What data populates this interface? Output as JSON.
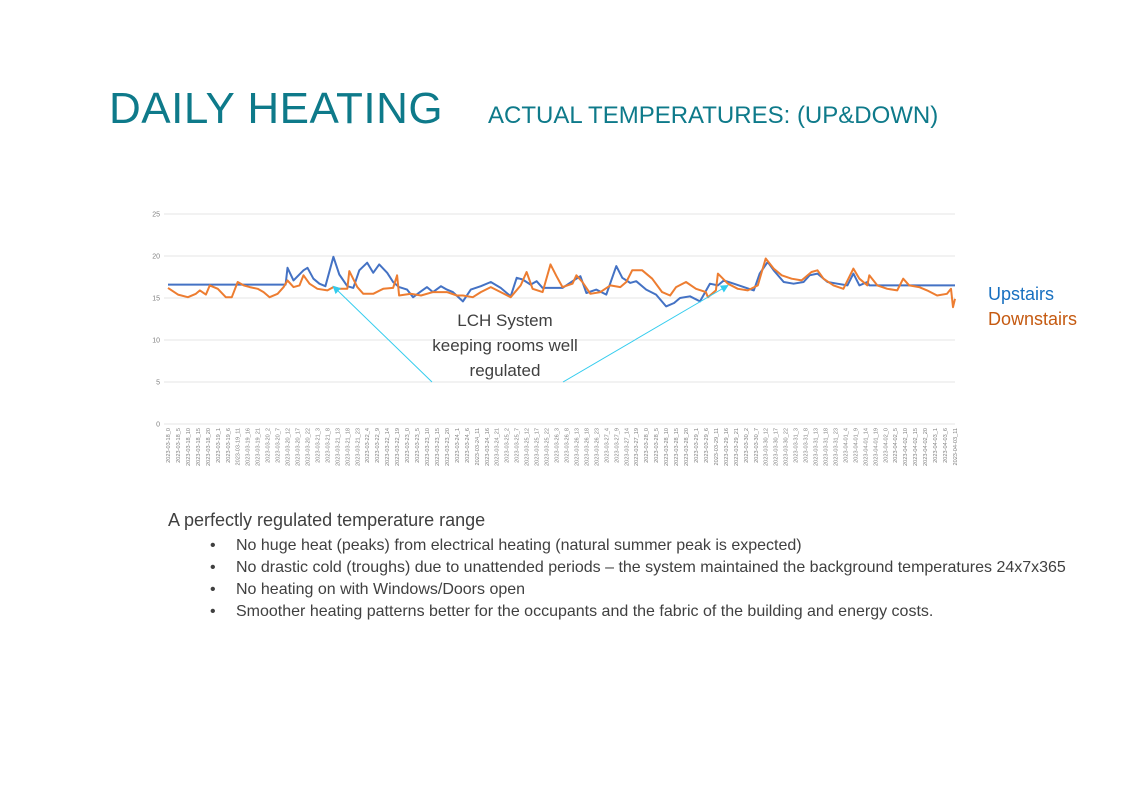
{
  "header": {
    "title": "DAILY HEATING",
    "subtitle": "ACTUAL TEMPERATURES: (UP&DOWN)"
  },
  "legend": {
    "upstairs": "Upstairs",
    "downstairs": "Downstairs"
  },
  "annotation": {
    "lines": [
      "LCH System",
      "keeping rooms well",
      "regulated"
    ]
  },
  "summary": {
    "heading": "A perfectly regulated temperature range",
    "bullet_glyph": "•",
    "bullets": [
      "No huge heat (peaks) from electrical heating (natural summer peak is expected)",
      "No drastic cold (troughs) due to unattended periods – the system maintained the background temperatures 24x7x365",
      "No heating on with Windows/Doors open",
      "Smoother heating patterns better for the occupants and the fabric of the building and energy costs."
    ]
  },
  "colors": {
    "title": "#0E7A8A",
    "upstairs_line": "#4472C4",
    "downstairs_line": "#ED7D31",
    "upstairs_legend": "#1870C0",
    "downstairs_legend": "#C55A11",
    "annotation_arrow": "#33CCEE"
  },
  "chart_data": {
    "type": "line",
    "title": "ACTUAL TEMPERATURES: (UP&DOWN)",
    "xlabel": "",
    "ylabel": "",
    "x_units": "hours since 2023-03-18_0",
    "xlim": [
      0,
      395
    ],
    "ylim": [
      0,
      25
    ],
    "yticks": [
      0,
      5,
      10,
      15,
      20,
      25
    ],
    "grid": true,
    "legend_position": "right",
    "categories": [
      "2023-03-18_0",
      "2023-03-18_5",
      "2023-03-18_10",
      "2023-03-18_15",
      "2023-03-18_20",
      "2023-03-19_1",
      "2023-03-19_6",
      "2023-03-19_11",
      "2023-03-19_16",
      "2023-03-19_21",
      "2023-03-20_2",
      "2023-03-20_7",
      "2023-03-20_12",
      "2023-03-20_17",
      "2023-03-20_22",
      "2023-03-21_3",
      "2023-03-21_8",
      "2023-03-21_13",
      "2023-03-21_18",
      "2023-03-21_23",
      "2023-03-22_4",
      "2023-03-22_9",
      "2023-03-22_14",
      "2023-03-22_19",
      "2023-03-23_0",
      "2023-03-23_5",
      "2023-03-23_10",
      "2023-03-23_15",
      "2023-03-23_20",
      "2023-03-24_1",
      "2023-03-24_6",
      "2023-03-24_11",
      "2023-03-24_16",
      "2023-03-24_21",
      "2023-03-25_2",
      "2023-03-25_7",
      "2023-03-25_12",
      "2023-03-25_17",
      "2023-03-25_22",
      "2023-03-26_3",
      "2023-03-26_8",
      "2023-03-26_13",
      "2023-03-26_18",
      "2023-03-26_23",
      "2023-03-27_4",
      "2023-03-27_9",
      "2023-03-27_14",
      "2023-03-27_19",
      "2023-03-28_0",
      "2023-03-28_5",
      "2023-03-28_10",
      "2023-03-28_15",
      "2023-03-28_20",
      "2023-03-29_1",
      "2023-03-29_6",
      "2023-03-29_11",
      "2023-03-29_16",
      "2023-03-29_21",
      "2023-03-30_2",
      "2023-03-30_7",
      "2023-03-30_12",
      "2023-03-30_17",
      "2023-03-30_22",
      "2023-03-31_3",
      "2023-03-31_8",
      "2023-03-31_13",
      "2023-03-31_18",
      "2023-03-31_23",
      "2023-04-01_4",
      "2023-04-01_9",
      "2023-04-01_14",
      "2023-04-01_19",
      "2023-04-02_0",
      "2023-04-02_5",
      "2023-04-02_10",
      "2023-04-02_15",
      "2023-04-02_20",
      "2023-04-03_1",
      "2023-04-03_6",
      "2023-04-03_11"
    ],
    "category_step_hours": 5,
    "series": [
      {
        "name": "Upstairs",
        "points": [
          [
            0,
            16.6
          ],
          [
            59,
            16.6
          ],
          [
            60,
            18.6
          ],
          [
            63,
            17.1
          ],
          [
            68,
            18.3
          ],
          [
            70,
            18.6
          ],
          [
            73,
            17.3
          ],
          [
            76,
            16.7
          ],
          [
            79,
            16.4
          ],
          [
            83,
            19.9
          ],
          [
            86,
            17.8
          ],
          [
            90,
            16.4
          ],
          [
            93,
            16.2
          ],
          [
            96,
            18.3
          ],
          [
            100,
            19.2
          ],
          [
            103,
            18.0
          ],
          [
            106,
            19.0
          ],
          [
            110,
            18.0
          ],
          [
            113,
            16.9
          ],
          [
            116,
            16.3
          ],
          [
            120,
            16.0
          ],
          [
            123,
            15.1
          ],
          [
            127,
            15.8
          ],
          [
            130,
            16.3
          ],
          [
            133,
            15.7
          ],
          [
            137,
            16.4
          ],
          [
            140,
            16.0
          ],
          [
            143,
            15.7
          ],
          [
            148,
            14.6
          ],
          [
            152,
            16.0
          ],
          [
            157,
            16.4
          ],
          [
            162,
            16.9
          ],
          [
            167,
            16.2
          ],
          [
            172,
            15.2
          ],
          [
            175,
            17.4
          ],
          [
            178,
            17.2
          ],
          [
            182,
            16.6
          ],
          [
            185,
            17.0
          ],
          [
            188,
            16.2
          ],
          [
            198,
            16.2
          ],
          [
            203,
            17.0
          ],
          [
            207,
            17.6
          ],
          [
            210,
            15.6
          ],
          [
            215,
            16.0
          ],
          [
            220,
            15.4
          ],
          [
            225,
            18.8
          ],
          [
            228,
            17.4
          ],
          [
            232,
            16.8
          ],
          [
            235,
            17.0
          ],
          [
            240,
            16.0
          ],
          [
            245,
            15.4
          ],
          [
            250,
            14.0
          ],
          [
            254,
            14.4
          ],
          [
            257,
            15.0
          ],
          [
            262,
            15.2
          ],
          [
            267,
            14.6
          ],
          [
            272,
            16.7
          ],
          [
            276,
            16.5
          ],
          [
            279,
            17.1
          ],
          [
            284,
            16.7
          ],
          [
            289,
            16.3
          ],
          [
            294,
            15.9
          ],
          [
            297,
            17.9
          ],
          [
            301,
            19.3
          ],
          [
            304,
            18.3
          ],
          [
            309,
            16.9
          ],
          [
            314,
            16.7
          ],
          [
            319,
            16.9
          ],
          [
            322,
            17.7
          ],
          [
            326,
            17.9
          ],
          [
            331,
            16.9
          ],
          [
            336,
            16.7
          ],
          [
            341,
            16.5
          ],
          [
            344,
            17.9
          ],
          [
            347,
            16.5
          ],
          [
            351,
            16.9
          ],
          [
            352,
            16.5
          ],
          [
            395,
            16.5
          ]
        ]
      },
      {
        "name": "Downstairs",
        "points": [
          [
            0,
            16.2
          ],
          [
            5,
            15.4
          ],
          [
            10,
            15.1
          ],
          [
            14,
            15.5
          ],
          [
            16,
            15.9
          ],
          [
            19,
            15.4
          ],
          [
            21,
            16.5
          ],
          [
            25,
            16.1
          ],
          [
            29,
            15.1
          ],
          [
            32,
            15.1
          ],
          [
            35,
            16.9
          ],
          [
            38,
            16.5
          ],
          [
            41,
            16.3
          ],
          [
            45,
            16.1
          ],
          [
            48,
            15.7
          ],
          [
            51,
            15.1
          ],
          [
            55,
            15.5
          ],
          [
            58,
            16.3
          ],
          [
            60,
            17.1
          ],
          [
            63,
            16.3
          ],
          [
            66,
            16.5
          ],
          [
            68,
            17.7
          ],
          [
            71,
            16.7
          ],
          [
            75,
            16.1
          ],
          [
            80,
            15.9
          ],
          [
            83,
            16.3
          ],
          [
            86,
            16.1
          ],
          [
            90,
            16.1
          ],
          [
            91,
            18.2
          ],
          [
            95,
            16.3
          ],
          [
            98,
            15.5
          ],
          [
            103,
            15.5
          ],
          [
            108,
            16.1
          ],
          [
            113,
            16.2
          ],
          [
            115,
            17.7
          ],
          [
            116,
            15.3
          ],
          [
            122,
            15.5
          ],
          [
            127,
            15.3
          ],
          [
            133,
            15.7
          ],
          [
            140,
            15.7
          ],
          [
            145,
            15.3
          ],
          [
            148,
            15.3
          ],
          [
            153,
            15.1
          ],
          [
            157,
            15.7
          ],
          [
            162,
            16.3
          ],
          [
            167,
            15.7
          ],
          [
            172,
            15.1
          ],
          [
            177,
            16.5
          ],
          [
            180,
            18.1
          ],
          [
            183,
            16.1
          ],
          [
            188,
            15.7
          ],
          [
            192,
            19.0
          ],
          [
            195,
            17.6
          ],
          [
            198,
            16.3
          ],
          [
            203,
            16.7
          ],
          [
            205,
            17.7
          ],
          [
            208,
            16.9
          ],
          [
            212,
            15.5
          ],
          [
            217,
            15.7
          ],
          [
            222,
            16.5
          ],
          [
            227,
            16.3
          ],
          [
            230,
            16.9
          ],
          [
            233,
            18.3
          ],
          [
            238,
            18.3
          ],
          [
            243,
            17.3
          ],
          [
            248,
            15.7
          ],
          [
            252,
            15.3
          ],
          [
            255,
            16.3
          ],
          [
            260,
            16.9
          ],
          [
            265,
            16.1
          ],
          [
            270,
            15.7
          ],
          [
            271,
            15.1
          ],
          [
            275,
            15.9
          ],
          [
            276,
            17.9
          ],
          [
            281,
            16.7
          ],
          [
            286,
            16.1
          ],
          [
            291,
            15.9
          ],
          [
            296,
            16.5
          ],
          [
            300,
            19.7
          ],
          [
            304,
            18.5
          ],
          [
            308,
            17.7
          ],
          [
            313,
            17.3
          ],
          [
            318,
            17.1
          ],
          [
            323,
            18.1
          ],
          [
            326,
            18.3
          ],
          [
            329,
            17.3
          ],
          [
            334,
            16.5
          ],
          [
            339,
            16.1
          ],
          [
            344,
            18.5
          ],
          [
            347,
            17.3
          ],
          [
            351,
            16.5
          ],
          [
            352,
            17.7
          ],
          [
            356,
            16.5
          ],
          [
            361,
            16.1
          ],
          [
            366,
            15.9
          ],
          [
            369,
            17.3
          ],
          [
            372,
            16.5
          ],
          [
            377,
            16.3
          ],
          [
            381,
            15.9
          ],
          [
            386,
            15.3
          ],
          [
            391,
            15.5
          ],
          [
            393,
            16.1
          ],
          [
            394,
            13.9
          ],
          [
            395,
            14.9
          ]
        ]
      }
    ]
  }
}
